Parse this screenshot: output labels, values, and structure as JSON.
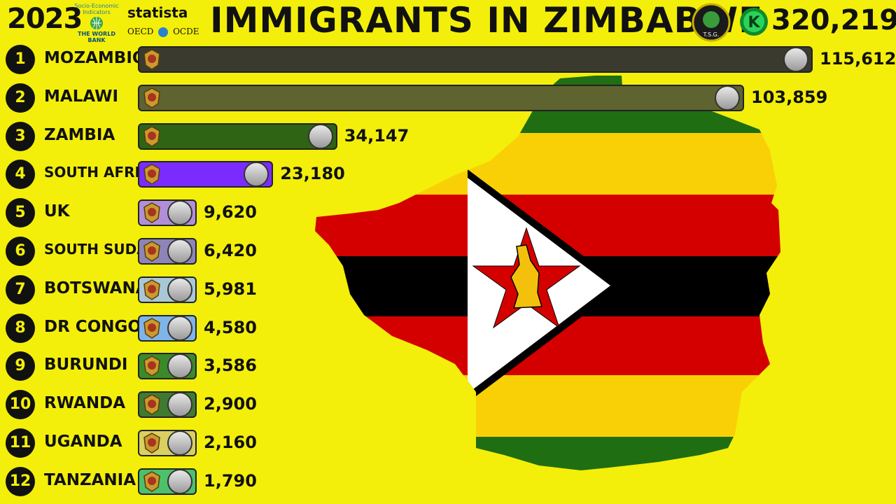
{
  "header": {
    "year": "2023",
    "title": "IMMIGRANTS IN ZIMBABWE",
    "total": "320,219",
    "sources": {
      "world_bank_top": "Socio-Economic Indicators",
      "world_bank_name": "THE WORLD BANK",
      "statista": "statista",
      "oecd": "OECD",
      "ocde": "OCDE"
    },
    "badge_text": "T.S.G."
  },
  "chart_data": {
    "type": "bar",
    "orientation": "horizontal",
    "title": "IMMIGRANTS IN ZIMBABWE",
    "year": "2023",
    "total": 320219,
    "categories": [
      "MOZAMBIQUE",
      "MALAWI",
      "ZAMBIA",
      "SOUTH AFRICA",
      "UK",
      "SOUTH SUDAN",
      "BOTSWANA",
      "DR CONGO",
      "BURUNDI",
      "RWANDA",
      "UGANDA",
      "TANZANIA"
    ],
    "values": [
      115612,
      103859,
      34147,
      23180,
      9620,
      6420,
      5981,
      4580,
      3586,
      2900,
      2160,
      1790
    ],
    "value_labels": [
      "115,612",
      "103,859",
      "34,147",
      "23,180",
      "9,620",
      "6,420",
      "5,981",
      "4,580",
      "3,586",
      "2,900",
      "2,160",
      "1,790"
    ],
    "ranks": [
      "1",
      "2",
      "3",
      "4",
      "5",
      "6",
      "7",
      "8",
      "9",
      "10",
      "11",
      "12"
    ],
    "bar_colors": [
      "#3b3a2e",
      "#5e6330",
      "#2e6414",
      "#7a2cff",
      "#b18fd8",
      "#8e84b8",
      "#a8c8d8",
      "#7fb4e8",
      "#3a8a2a",
      "#3f7a30",
      "#d9d060",
      "#4cc06a"
    ]
  },
  "colors": {
    "background": "#f3ef0a",
    "text": "#111111"
  },
  "icons": {
    "map_flag": "zimbabwe-flag-map",
    "emblems": "country-coat-of-arms-icon",
    "flags": "country-flag-icon"
  }
}
